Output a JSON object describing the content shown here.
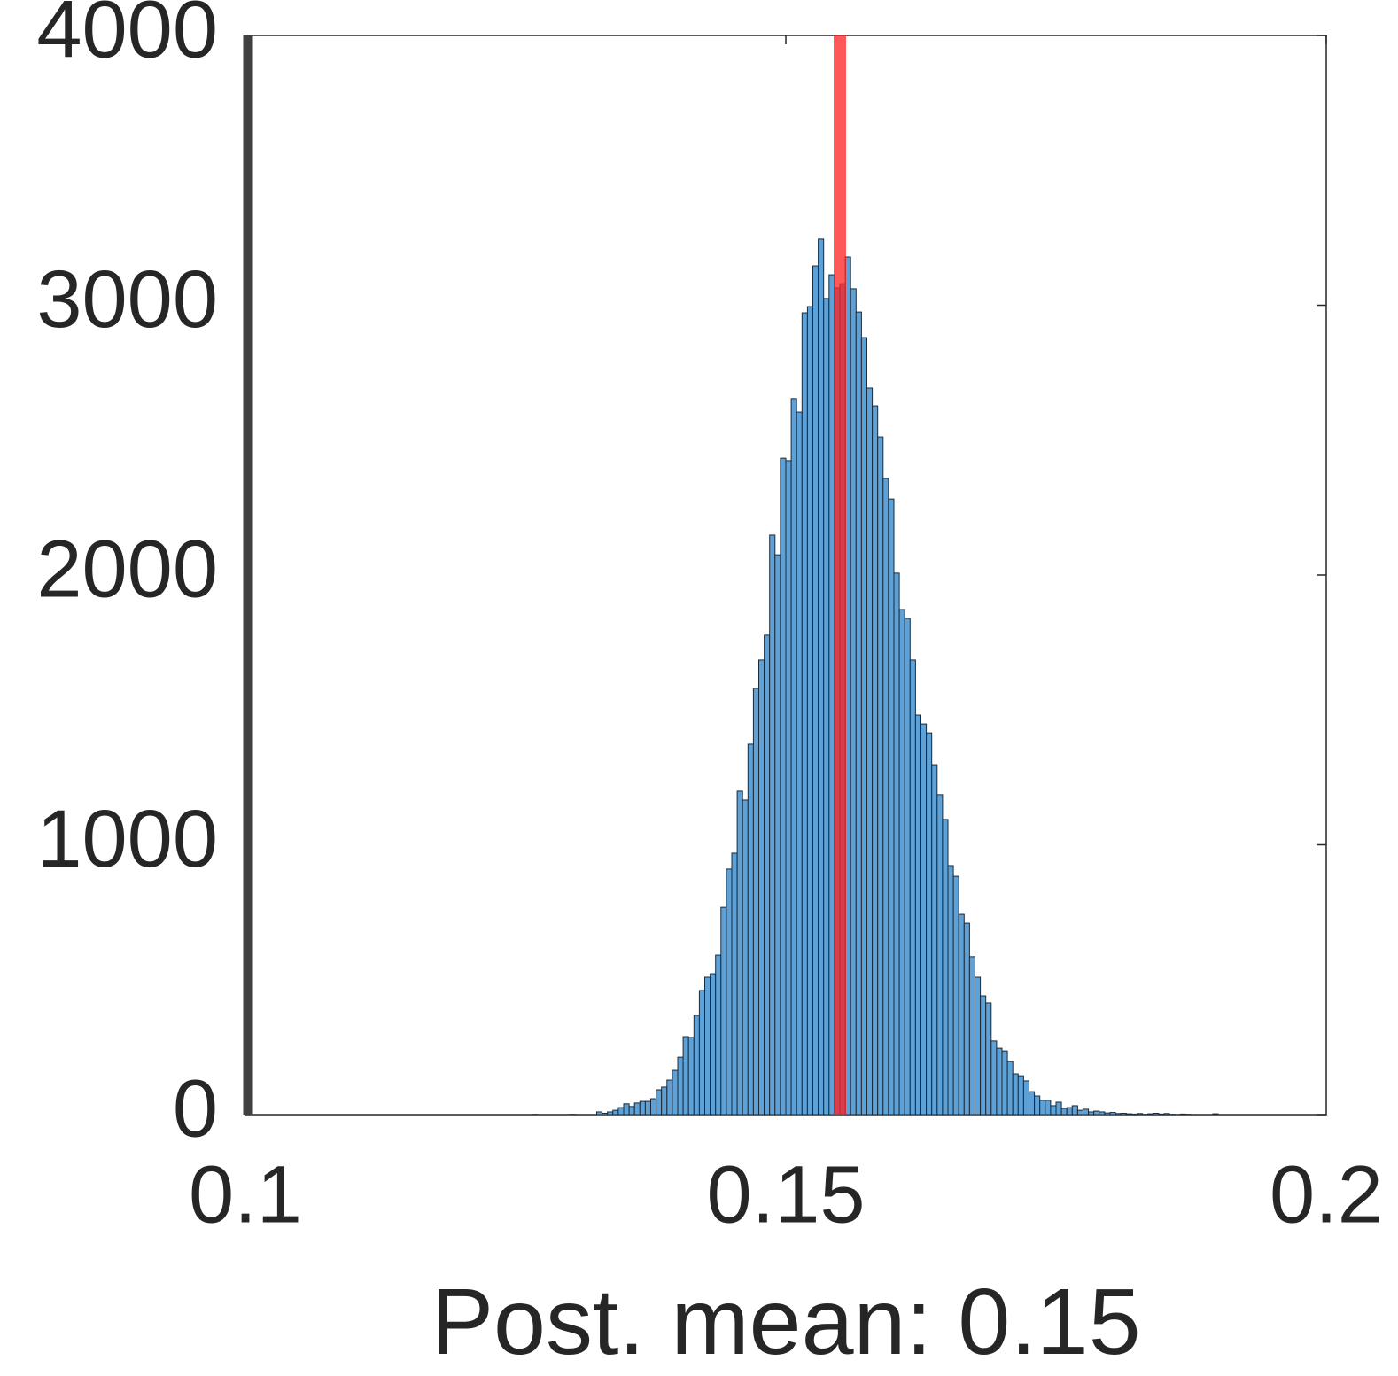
{
  "chart_data": {
    "type": "histogram",
    "xlabel": "Post. mean: 0.15",
    "bins": [
      0.1265,
      0.127,
      0.1275,
      0.128,
      0.1285,
      0.129,
      0.1295,
      0.13,
      0.1305,
      0.131,
      0.1315,
      0.132,
      0.1325,
      0.133,
      0.1335,
      0.134,
      0.1345,
      0.135,
      0.1355,
      0.136,
      0.1365,
      0.137,
      0.1375,
      0.138,
      0.1385,
      0.139,
      0.1395,
      0.14,
      0.1405,
      0.141,
      0.1415,
      0.142,
      0.1425,
      0.143,
      0.1435,
      0.144,
      0.1445,
      0.145,
      0.1455,
      0.146,
      0.1465,
      0.147,
      0.1475,
      0.148,
      0.1485,
      0.149,
      0.1495,
      0.15,
      0.1505,
      0.151,
      0.1515,
      0.152,
      0.1525,
      0.153,
      0.1535,
      0.154,
      0.1545,
      0.155,
      0.1555,
      0.156,
      0.1565,
      0.157,
      0.1575,
      0.158,
      0.1585,
      0.159,
      0.1595,
      0.16,
      0.1605,
      0.161,
      0.1615,
      0.162,
      0.1625,
      0.163,
      0.1635,
      0.164,
      0.1645,
      0.165,
      0.1655,
      0.166,
      0.1665,
      0.167,
      0.1675,
      0.168,
      0.1685,
      0.169,
      0.1695,
      0.17,
      0.1705,
      0.171,
      0.1715,
      0.172,
      0.1725,
      0.173,
      0.1735,
      0.174,
      0.1745,
      0.175,
      0.1755,
      0.176,
      0.1765,
      0.177,
      0.1775,
      0.178,
      0.1785,
      0.179,
      0.1795,
      0.18,
      0.1805,
      0.181,
      0.1815,
      0.182,
      0.1825,
      0.183,
      0.1835,
      0.184,
      0.1845,
      0.185,
      0.1855,
      0.186,
      0.1865,
      0.187,
      0.1875,
      0.188,
      0.1885,
      0.189,
      0.1895,
      0.19
    ],
    "values": [
      1,
      0,
      0,
      0,
      0,
      0,
      0,
      1,
      0,
      0,
      0,
      0,
      10,
      5,
      10,
      16,
      26,
      40,
      30,
      43,
      49,
      49,
      59,
      92,
      102,
      128,
      164,
      213,
      289,
      286,
      368,
      460,
      509,
      522,
      591,
      768,
      910,
      969,
      1199,
      1166,
      1373,
      1580,
      1685,
      1777,
      2148,
      2075,
      2433,
      2424,
      2654,
      2604,
      2972,
      2995,
      3146,
      3245,
      3025,
      3113,
      3064,
      3080,
      3179,
      3061,
      2975,
      2880,
      2693,
      2627,
      2512,
      2358,
      2282,
      2007,
      1872,
      1839,
      1685,
      1481,
      1448,
      1415,
      1297,
      1186,
      1094,
      923,
      883,
      742,
      709,
      585,
      509,
      440,
      414,
      273,
      246,
      236,
      197,
      151,
      144,
      125,
      85,
      69,
      53,
      53,
      33,
      46,
      23,
      26,
      33,
      16,
      20,
      10,
      13,
      10,
      6,
      8,
      4,
      5,
      3,
      2,
      4,
      1,
      3,
      5,
      2,
      4,
      1,
      0,
      2,
      1,
      0,
      0,
      0,
      0,
      3
    ],
    "color": "#5ea1d6",
    "edgecolor": "#1a2a3a",
    "vline_x": 0.155,
    "vline_color": "#ff2020",
    "xlim": [
      0.1,
      0.2
    ],
    "xticks": [
      0.1,
      0.15,
      0.2
    ],
    "ylim": [
      0,
      4000
    ],
    "yticks": [
      0,
      1000,
      2000,
      3000,
      4000
    ]
  }
}
